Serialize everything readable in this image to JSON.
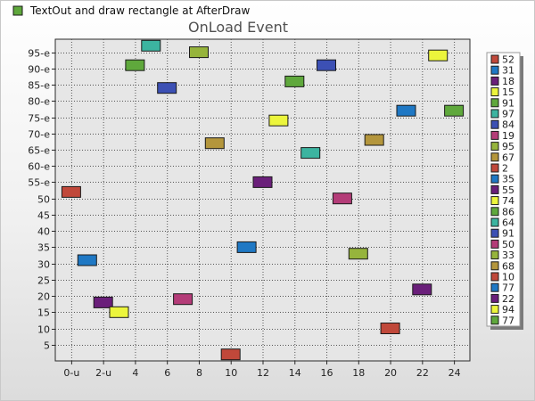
{
  "header": {
    "label": "TextOut and draw rectangle at AfterDraw",
    "swatch_color": "#5fa83c"
  },
  "chart_data": {
    "type": "scatter",
    "title": "OnLoad Event",
    "xlabel": "",
    "ylabel": "",
    "xlim": [
      -1,
      25
    ],
    "ylim": [
      0,
      99
    ],
    "x_ticks": [
      0,
      2,
      4,
      6,
      8,
      10,
      12,
      14,
      16,
      18,
      20,
      22,
      24
    ],
    "x_tick_labels": [
      "0-u",
      "2-u",
      "4",
      "6",
      "8",
      "10",
      "12",
      "14",
      "16",
      "18",
      "20",
      "22",
      "24"
    ],
    "y_ticks": [
      5,
      10,
      15,
      20,
      25,
      30,
      35,
      40,
      45,
      50,
      55,
      60,
      65,
      70,
      75,
      80,
      85,
      90,
      95
    ],
    "y_tick_labels": [
      "5",
      "10",
      "15",
      "20",
      "25",
      "30",
      "35",
      "40",
      "45",
      "50",
      "55-e",
      "60-e",
      "65-e",
      "70-e",
      "75-e",
      "80-e",
      "85-e",
      "90-e",
      "95-e"
    ],
    "grid": true,
    "legend_position": "right",
    "points": [
      {
        "x": 0,
        "y": 52,
        "label": "52",
        "color": "#c0483a"
      },
      {
        "x": 1,
        "y": 31,
        "label": "31",
        "color": "#1f78c4"
      },
      {
        "x": 2,
        "y": 18,
        "label": "18",
        "color": "#6a1f7a"
      },
      {
        "x": 3,
        "y": 15,
        "label": "15",
        "color": "#ecf53c"
      },
      {
        "x": 4,
        "y": 91,
        "label": "91",
        "color": "#5fa83c"
      },
      {
        "x": 5,
        "y": 97,
        "label": "97",
        "color": "#3cb4a0"
      },
      {
        "x": 6,
        "y": 84,
        "label": "84",
        "color": "#3c50b4"
      },
      {
        "x": 7,
        "y": 19,
        "label": "19",
        "color": "#b43c78"
      },
      {
        "x": 8,
        "y": 95,
        "label": "95",
        "color": "#96b43c"
      },
      {
        "x": 9,
        "y": 67,
        "label": "67",
        "color": "#b4963c"
      },
      {
        "x": 10,
        "y": 2,
        "label": "2",
        "color": "#c0483a"
      },
      {
        "x": 11,
        "y": 35,
        "label": "35",
        "color": "#1f78c4"
      },
      {
        "x": 12,
        "y": 55,
        "label": "55",
        "color": "#6a1f7a"
      },
      {
        "x": 13,
        "y": 74,
        "label": "74",
        "color": "#ecf53c"
      },
      {
        "x": 14,
        "y": 86,
        "label": "86",
        "color": "#5fa83c"
      },
      {
        "x": 15,
        "y": 64,
        "label": "64",
        "color": "#3cb4a0"
      },
      {
        "x": 16,
        "y": 91,
        "label": "91",
        "color": "#3c50b4"
      },
      {
        "x": 17,
        "y": 50,
        "label": "50",
        "color": "#b43c78"
      },
      {
        "x": 18,
        "y": 33,
        "label": "33",
        "color": "#96b43c"
      },
      {
        "x": 19,
        "y": 68,
        "label": "68",
        "color": "#b4963c"
      },
      {
        "x": 20,
        "y": 10,
        "label": "10",
        "color": "#c0483a"
      },
      {
        "x": 21,
        "y": 77,
        "label": "77",
        "color": "#1f78c4"
      },
      {
        "x": 22,
        "y": 22,
        "label": "22",
        "color": "#6a1f7a"
      },
      {
        "x": 23,
        "y": 94,
        "label": "94",
        "color": "#ecf53c"
      },
      {
        "x": 24,
        "y": 77,
        "label": "77",
        "color": "#5fa83c"
      }
    ]
  }
}
